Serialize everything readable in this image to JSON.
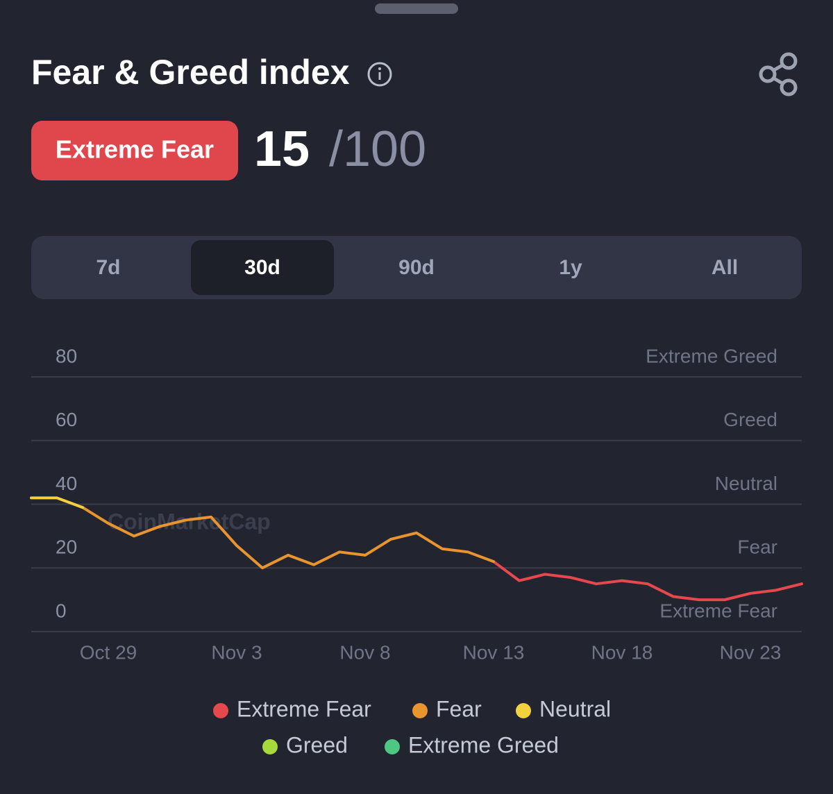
{
  "header": {
    "title": "Fear & Greed index",
    "badge": "Extreme Fear",
    "score": "15",
    "max": "/100"
  },
  "tabs": {
    "items": [
      "7d",
      "30d",
      "90d",
      "1y",
      "All"
    ],
    "selected": "30d"
  },
  "chart_data": {
    "type": "line",
    "watermark": "CoinMarketCap",
    "categories": [
      null,
      null,
      null,
      "Oct 29",
      null,
      null,
      null,
      null,
      "Nov 3",
      null,
      null,
      null,
      null,
      "Nov 8",
      null,
      null,
      null,
      null,
      "Nov 13",
      null,
      null,
      null,
      null,
      "Nov 18",
      null,
      null,
      null,
      null,
      "Nov 23",
      null,
      null
    ],
    "ylim": [
      0,
      80
    ],
    "yticks": [
      0,
      20,
      40,
      60,
      80
    ],
    "zone_labels": [
      "Extreme Fear",
      "Fear",
      "Neutral",
      "Greed",
      "Extreme Greed"
    ],
    "grid": true,
    "series": [
      {
        "name": "Extreme Fear",
        "color": "#e5484d",
        "values": [
          null,
          null,
          null,
          null,
          null,
          null,
          null,
          null,
          null,
          null,
          null,
          null,
          null,
          null,
          null,
          null,
          null,
          null,
          22,
          16,
          18,
          17,
          15,
          16,
          15,
          11,
          10,
          10,
          12,
          13,
          15
        ]
      },
      {
        "name": "Fear",
        "color": "#e8942f",
        "values": [
          null,
          null,
          39,
          34,
          30,
          33,
          35,
          36,
          27,
          20,
          24,
          21,
          25,
          24,
          29,
          31,
          26,
          25,
          22,
          null,
          null,
          null,
          null,
          null,
          null,
          null,
          null,
          null,
          null,
          null,
          null
        ]
      },
      {
        "name": "Neutral",
        "color": "#f3d03e",
        "values": [
          42,
          42,
          39,
          null,
          null,
          null,
          null,
          null,
          null,
          null,
          null,
          null,
          null,
          null,
          null,
          null,
          null,
          null,
          null,
          null,
          null,
          null,
          null,
          null,
          null,
          null,
          null,
          null,
          null,
          null,
          null
        ]
      },
      {
        "name": "Greed",
        "color": "#a6d93b",
        "values": [
          null,
          null,
          null,
          null,
          null,
          null,
          null,
          null,
          null,
          null,
          null,
          null,
          null,
          null,
          null,
          null,
          null,
          null,
          null,
          null,
          null,
          null,
          null,
          null,
          null,
          null,
          null,
          null,
          null,
          null,
          null
        ]
      },
      {
        "name": "Extreme Greed",
        "color": "#4fc784",
        "values": [
          null,
          null,
          null,
          null,
          null,
          null,
          null,
          null,
          null,
          null,
          null,
          null,
          null,
          null,
          null,
          null,
          null,
          null,
          null,
          null,
          null,
          null,
          null,
          null,
          null,
          null,
          null,
          null,
          null,
          null,
          null
        ]
      }
    ]
  }
}
